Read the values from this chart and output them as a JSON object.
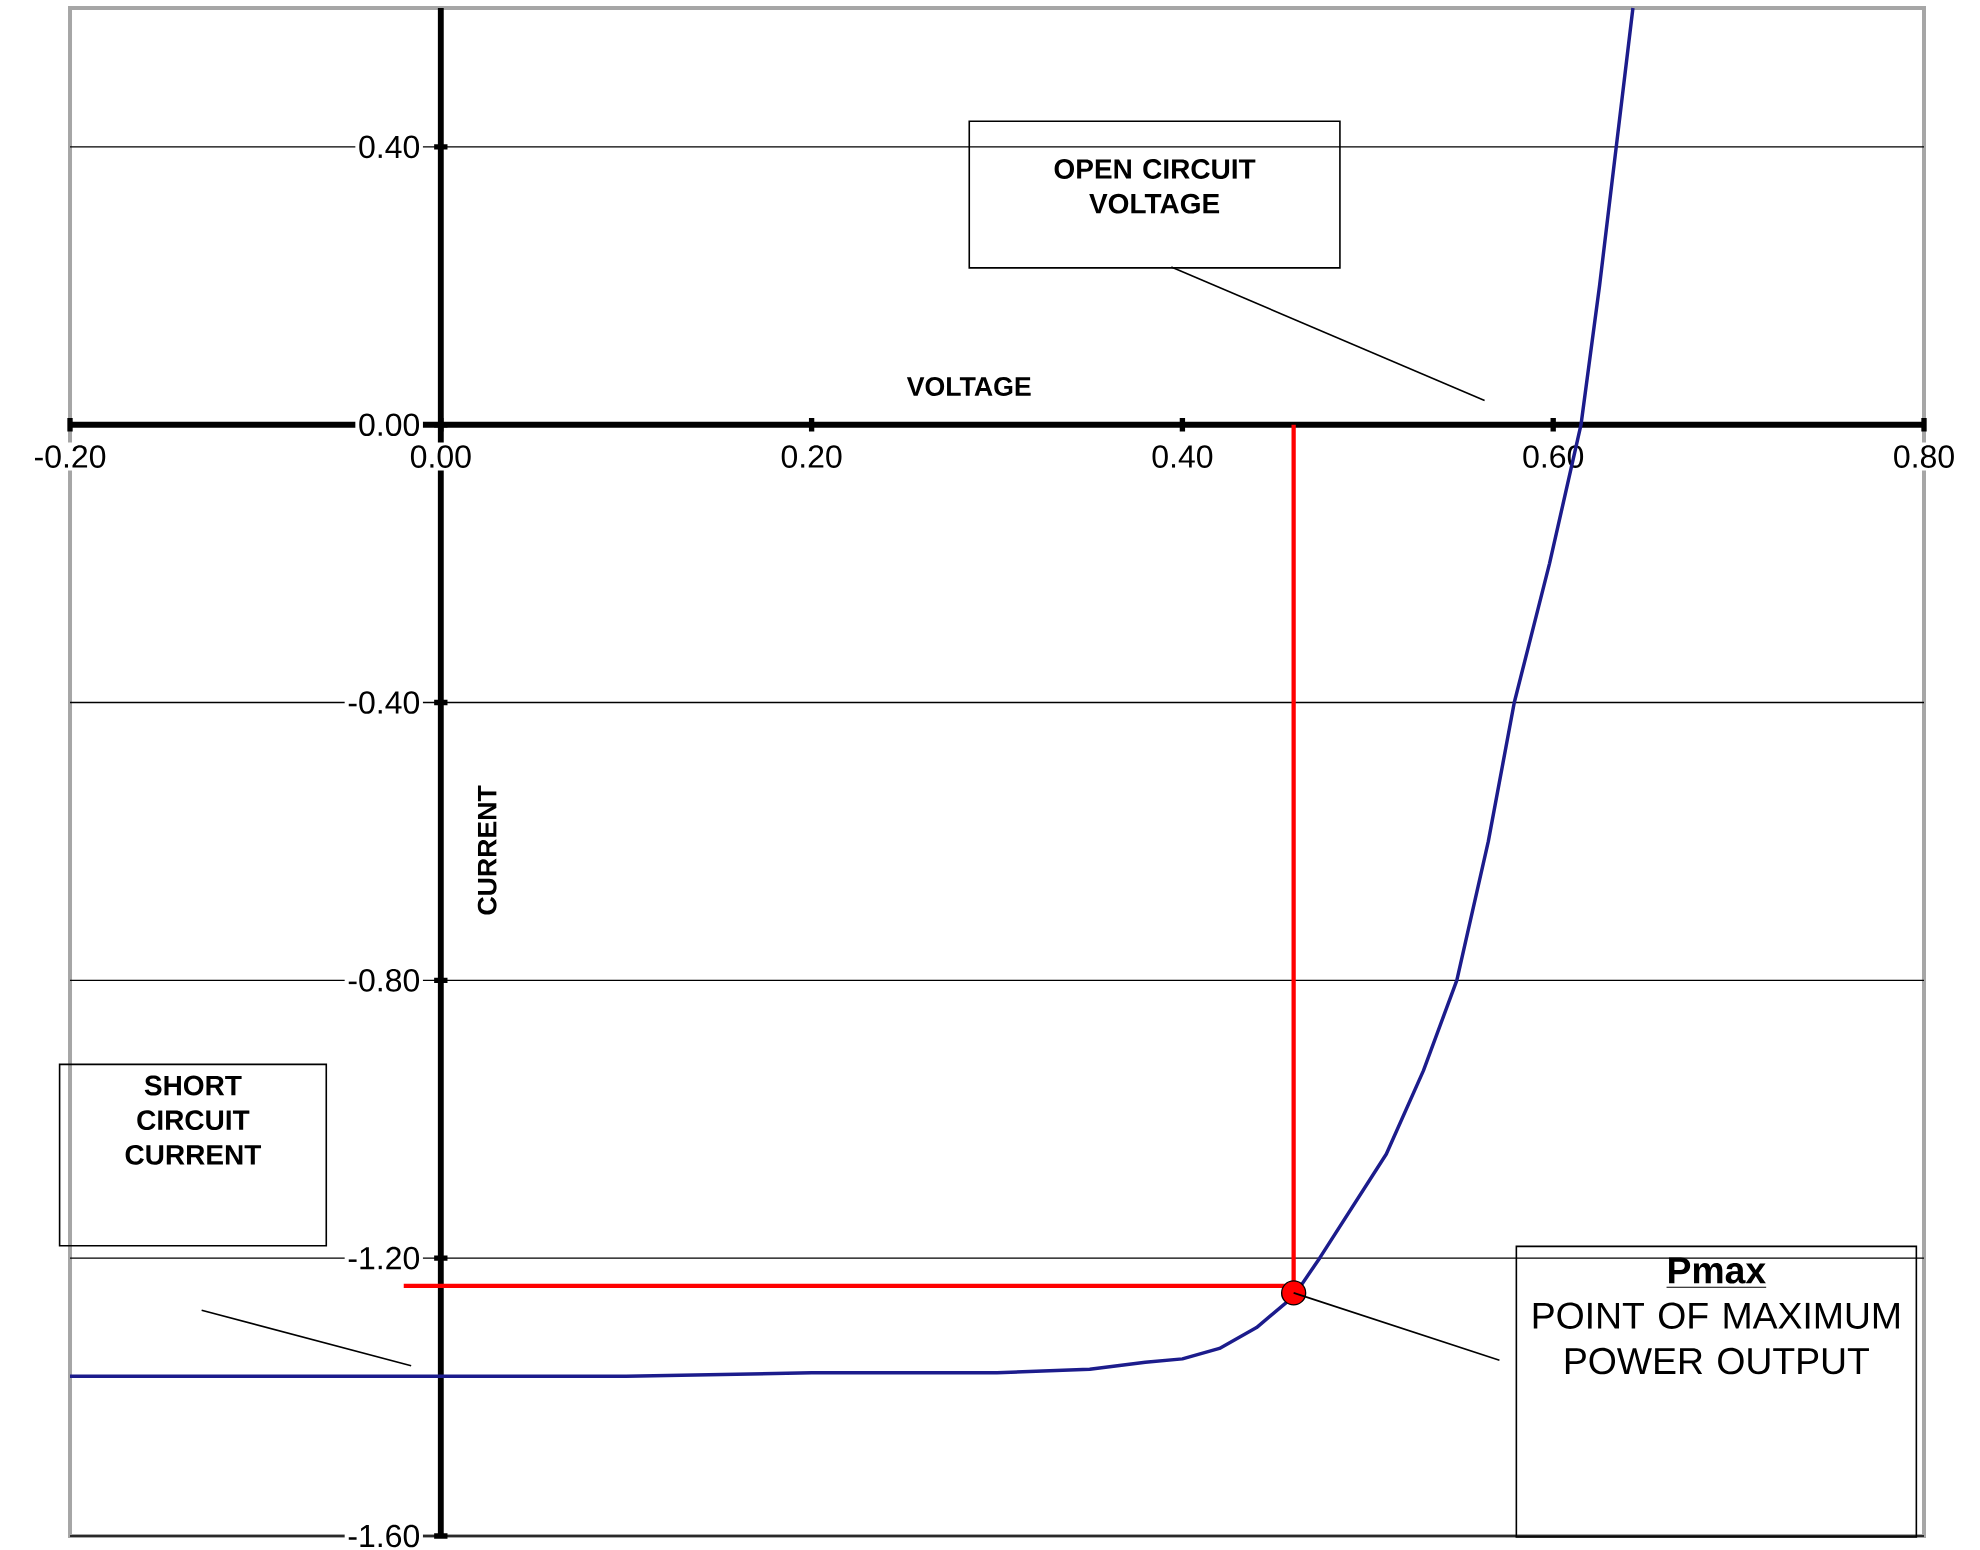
{
  "chart_data": {
    "type": "line",
    "xlabel": "VOLTAGE",
    "ylabel": "CURRENT",
    "xlim": [
      -0.2,
      0.8
    ],
    "ylim": [
      -1.6,
      0.6
    ],
    "xticks": [
      {
        "value": -0.2,
        "label": "-0.20"
      },
      {
        "value": 0,
        "label": "0.00"
      },
      {
        "value": 0.2,
        "label": "0.20"
      },
      {
        "value": 0.4,
        "label": "0.40"
      },
      {
        "value": 0.6,
        "label": "0.60"
      },
      {
        "value": 0.8,
        "label": "0.80"
      }
    ],
    "yticks": [
      {
        "value": 0.4,
        "label": "0.40"
      },
      {
        "value": 0,
        "label": "0.00"
      },
      {
        "value": -0.4,
        "label": "-0.40"
      },
      {
        "value": -0.8,
        "label": "-0.80"
      },
      {
        "value": -1.2,
        "label": "-1.20"
      },
      {
        "value": -1.6,
        "label": "-1.60"
      }
    ],
    "grid": "y",
    "series": [
      {
        "type": "line",
        "color": "#1c1c8c",
        "x": [
          -0.2,
          0,
          0.1,
          0.2,
          0.3,
          0.35,
          0.38,
          0.4,
          0.42,
          0.44,
          0.46,
          0.474,
          0.51,
          0.53,
          0.548,
          0.565,
          0.579,
          0.598,
          0.615,
          0.625,
          0.634,
          0.643
        ],
        "values": [
          -1.37,
          -1.37,
          -1.37,
          -1.365,
          -1.365,
          -1.36,
          -1.35,
          -1.345,
          -1.33,
          -1.3,
          -1.255,
          -1.2,
          -1.05,
          -0.93,
          -0.8,
          -0.6,
          -0.4,
          -0.2,
          0,
          0.2,
          0.4,
          0.6
        ]
      },
      {
        "type": "line",
        "color": "#ff0000",
        "x": [
          0.46,
          0.46
        ],
        "values": [
          0,
          -1.25
        ]
      },
      {
        "type": "line",
        "color": "#ff0000",
        "x": [
          -0.02,
          0.46
        ],
        "values": [
          -1.24,
          -1.24
        ]
      },
      {
        "type": "scatter",
        "color": "#ff0000",
        "marker": "circle",
        "x": [
          0.46
        ],
        "values": [
          -1.25
        ]
      }
    ],
    "annotations": [
      "OPEN CIRCUIT VOLTAGE",
      "SHORT CIRCUIT CURRENT",
      "Pmax",
      {
        "text": "POINT OF MAXIMUM POWER OUTPUT",
        "x": 0.46,
        "y": -1.25
      }
    ]
  }
}
